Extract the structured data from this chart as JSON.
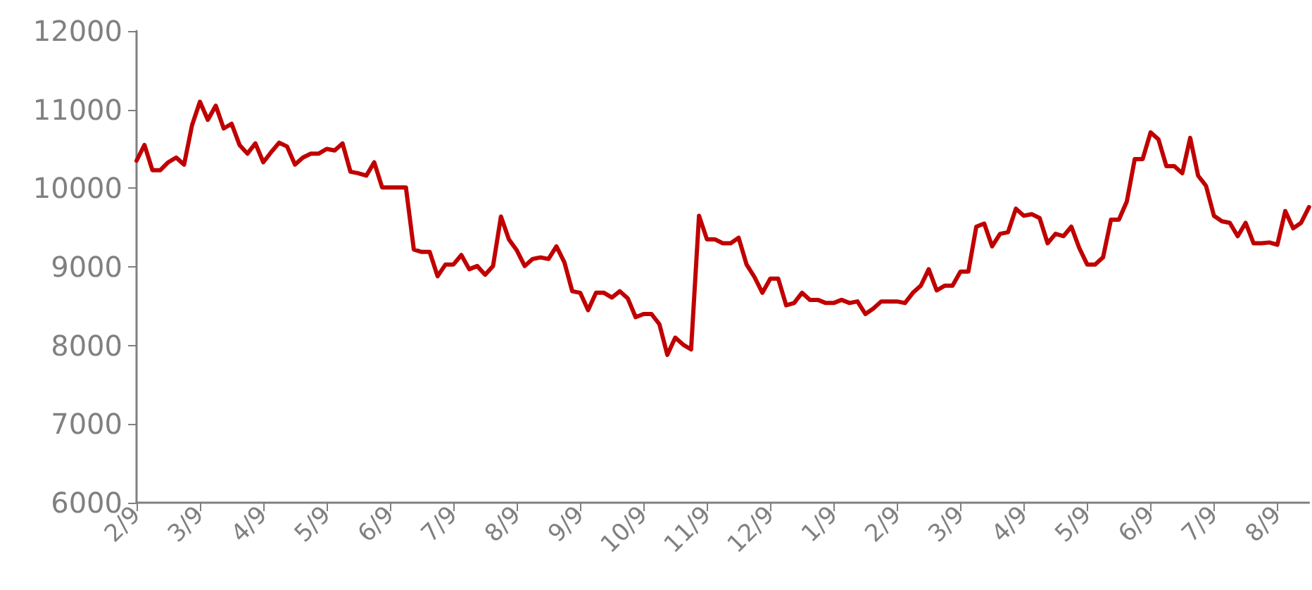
{
  "chart_data": {
    "type": "line",
    "ylim": [
      6000,
      12000
    ],
    "yticks": [
      6000,
      7000,
      8000,
      9000,
      10000,
      11000,
      12000
    ],
    "categories": [
      "2/9",
      null,
      null,
      null,
      null,
      null,
      null,
      null,
      "3/9",
      null,
      null,
      null,
      null,
      null,
      null,
      null,
      "4/9",
      null,
      null,
      null,
      null,
      null,
      null,
      null,
      "5/9",
      null,
      null,
      null,
      null,
      null,
      null,
      null,
      "6/9",
      null,
      null,
      null,
      null,
      null,
      null,
      null,
      "7/9",
      null,
      null,
      null,
      null,
      null,
      null,
      null,
      "8/9",
      null,
      null,
      null,
      null,
      null,
      null,
      null,
      "9/9",
      null,
      null,
      null,
      null,
      null,
      null,
      null,
      "10/9",
      null,
      null,
      null,
      null,
      null,
      null,
      null,
      "11/9",
      null,
      null,
      null,
      null,
      null,
      null,
      null,
      "12/9",
      null,
      null,
      null,
      null,
      null,
      null,
      null,
      "1/9",
      null,
      null,
      null,
      null,
      null,
      null,
      null,
      "2/9",
      null,
      null,
      null,
      null,
      null,
      null,
      null,
      "3/9",
      null,
      null,
      null,
      null,
      null,
      null,
      null,
      "4/9",
      null,
      null,
      null,
      null,
      null,
      null,
      null,
      "5/9",
      null,
      null,
      null,
      null,
      null,
      null,
      null,
      "6/9",
      null,
      null,
      null,
      null,
      null,
      null,
      null,
      "7/9",
      null,
      null,
      null,
      null,
      null,
      null,
      null,
      "8/9",
      null,
      null,
      null,
      null
    ],
    "grid": false,
    "marker": "none",
    "line_style": "solid",
    "series": [
      {
        "color": "#c00000",
        "values": [
          10350,
          10550,
          10230,
          10230,
          10330,
          10390,
          10300,
          10800,
          11100,
          10870,
          11050,
          10760,
          10820,
          10550,
          10440,
          10570,
          10330,
          10460,
          10580,
          10530,
          10300,
          10390,
          10440,
          10440,
          10500,
          10480,
          10570,
          10210,
          10190,
          10160,
          10330,
          10010,
          10010,
          10010,
          10010,
          9220,
          9190,
          9190,
          8880,
          9030,
          9030,
          9150,
          8970,
          9010,
          8900,
          9010,
          9640,
          9350,
          9210,
          9010,
          9100,
          9120,
          9100,
          9260,
          9060,
          8690,
          8670,
          8450,
          8670,
          8670,
          8610,
          8690,
          8600,
          8360,
          8400,
          8400,
          8270,
          7880,
          8100,
          8010,
          7950,
          9650,
          9350,
          9350,
          9300,
          9300,
          9370,
          9030,
          8870,
          8670,
          8850,
          8850,
          8510,
          8540,
          8670,
          8580,
          8580,
          8540,
          8540,
          8580,
          8540,
          8560,
          8400,
          8470,
          8560,
          8560,
          8560,
          8540,
          8670,
          8760,
          8970,
          8700,
          8760,
          8760,
          8940,
          8940,
          9510,
          9550,
          9260,
          9420,
          9440,
          9740,
          9650,
          9670,
          9620,
          9300,
          9420,
          9390,
          9510,
          9240,
          9030,
          9030,
          9120,
          9600,
          9600,
          9830,
          10370,
          10370,
          10710,
          10620,
          10280,
          10280,
          10190,
          10640,
          10160,
          10030,
          9650,
          9580,
          9560,
          9390,
          9560,
          9300,
          9300,
          9310,
          9280,
          9710,
          9490,
          9560,
          9760
        ]
      }
    ]
  }
}
